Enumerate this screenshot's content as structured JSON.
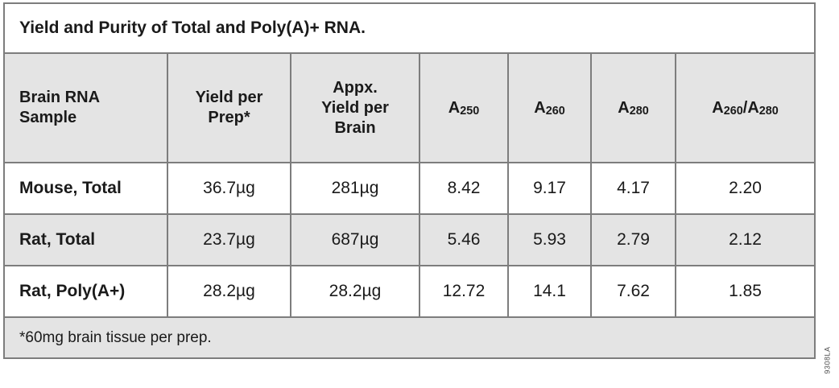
{
  "title": "Yield and Purity of Total and Poly(A)+ RNA.",
  "table": {
    "headers": {
      "sample": "Brain RNA\nSample",
      "yield_per_prep": "Yield per\nPrep*",
      "yield_per_brain": "Appx.\nYield per\nBrain",
      "a250": {
        "base": "A",
        "sub": "250"
      },
      "a260": {
        "base": "A",
        "sub": "260"
      },
      "a280": {
        "base": "A",
        "sub": "280"
      },
      "ratio": {
        "b1": "A",
        "s1": "260",
        "divider": "/",
        "b2": "A",
        "s2": "280"
      }
    },
    "rows": [
      {
        "sample": "Mouse, Total",
        "yield_per_prep": "36.7µg",
        "yield_per_brain": "281µg",
        "a250": "8.42",
        "a260": "9.17",
        "a280": "4.17",
        "ratio": "2.20"
      },
      {
        "sample": "Rat, Total",
        "yield_per_prep": "23.7µg",
        "yield_per_brain": "687µg",
        "a250": "5.46",
        "a260": "5.93",
        "a280": "2.79",
        "ratio": "2.12"
      },
      {
        "sample": "Rat, Poly(A+)",
        "yield_per_prep": "28.2µg",
        "yield_per_brain": "28.2µg",
        "a250": "12.72",
        "a260": "14.1",
        "a280": "7.62",
        "ratio": "1.85"
      }
    ],
    "footnote": "*60mg brain tissue per prep."
  },
  "figure_code": "9308LA",
  "colors": {
    "row_shade": "#e4e4e4",
    "row_plain": "#ffffff",
    "inner_border": "#7d7d7d",
    "outer_border": "#a3a3a3",
    "text": "#1a1a1a"
  },
  "chart_data": {
    "type": "table",
    "title": "Yield and Purity of Total and Poly(A)+ RNA.",
    "columns": [
      "Brain RNA Sample",
      "Yield per Prep*",
      "Appx. Yield per Brain",
      "A250",
      "A260",
      "A280",
      "A260/A280"
    ],
    "rows": [
      [
        "Mouse, Total",
        "36.7µg",
        "281µg",
        8.42,
        9.17,
        4.17,
        2.2
      ],
      [
        "Rat, Total",
        "23.7µg",
        "687µg",
        5.46,
        5.93,
        2.79,
        2.12
      ],
      [
        "Rat, Poly(A+)",
        "28.2µg",
        "28.2µg",
        12.72,
        14.1,
        7.62,
        1.85
      ]
    ],
    "footnote": "*60mg brain tissue per prep.",
    "layout": {
      "shaded_rows": [
        "header",
        "Rat, Total",
        "footnote"
      ],
      "grid": "on"
    }
  }
}
